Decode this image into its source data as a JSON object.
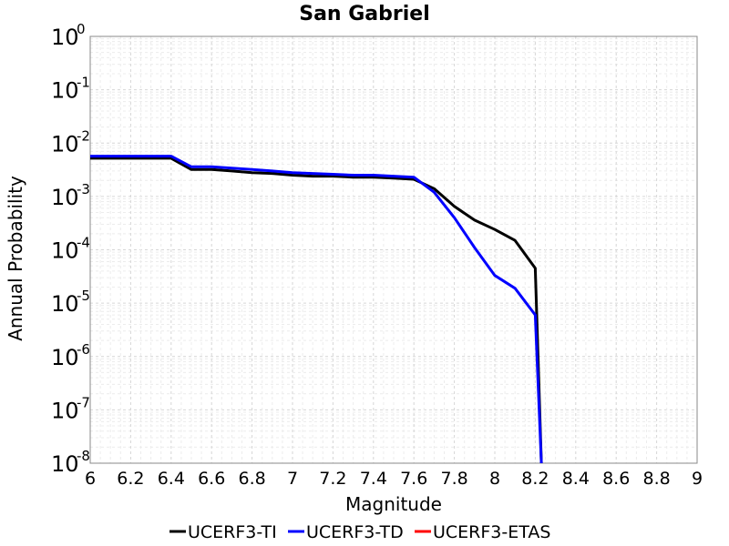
{
  "chart_data": {
    "type": "line",
    "title": "San Gabriel",
    "xlabel": "Magnitude",
    "ylabel": "Annual Probability",
    "xlim": [
      6,
      9
    ],
    "ylim": [
      1e-08,
      1
    ],
    "yscale": "log",
    "grid": true,
    "legend_position": "bottom",
    "x_ticks": [
      "6",
      "6.2",
      "6.4",
      "6.6",
      "6.8",
      "7",
      "7.2",
      "7.4",
      "7.6",
      "7.8",
      "8",
      "8.2",
      "8.4",
      "8.6",
      "8.8",
      "9"
    ],
    "y_ticks": [
      {
        "base": "10",
        "exp": "0"
      },
      {
        "base": "10",
        "exp": "-1"
      },
      {
        "base": "10",
        "exp": "-2"
      },
      {
        "base": "10",
        "exp": "-3"
      },
      {
        "base": "10",
        "exp": "-4"
      },
      {
        "base": "10",
        "exp": "-5"
      },
      {
        "base": "10",
        "exp": "-6"
      },
      {
        "base": "10",
        "exp": "-7"
      },
      {
        "base": "10",
        "exp": "-8"
      }
    ],
    "series": [
      {
        "name": "UCERF3-TI",
        "color": "#000000",
        "x": [
          6.0,
          6.1,
          6.2,
          6.3,
          6.4,
          6.5,
          6.6,
          6.7,
          6.8,
          6.9,
          7.0,
          7.1,
          7.2,
          7.3,
          7.4,
          7.5,
          7.6,
          7.7,
          7.8,
          7.9,
          8.0,
          8.1,
          8.2,
          8.23
        ],
        "y": [
          0.0052,
          0.0052,
          0.0052,
          0.0052,
          0.0052,
          0.0032,
          0.0032,
          0.003,
          0.0028,
          0.0027,
          0.0025,
          0.0024,
          0.0024,
          0.0023,
          0.0023,
          0.0022,
          0.0021,
          0.0014,
          0.00065,
          0.00036,
          0.00024,
          0.00015,
          4.5e-05,
          1e-08
        ]
      },
      {
        "name": "UCERF3-TD",
        "color": "#0000ff",
        "x": [
          6.0,
          6.1,
          6.2,
          6.3,
          6.4,
          6.5,
          6.6,
          6.7,
          6.8,
          6.9,
          7.0,
          7.1,
          7.2,
          7.3,
          7.4,
          7.5,
          7.6,
          7.7,
          7.8,
          7.9,
          8.0,
          8.1,
          8.2,
          8.23
        ],
        "y": [
          0.0057,
          0.0057,
          0.0057,
          0.0057,
          0.0057,
          0.0036,
          0.0036,
          0.0034,
          0.0032,
          0.003,
          0.0028,
          0.0027,
          0.0026,
          0.0025,
          0.0025,
          0.0024,
          0.0023,
          0.0012,
          0.0004,
          0.00011,
          3.3e-05,
          1.9e-05,
          6e-06,
          1e-08
        ]
      },
      {
        "name": "UCERF3-ETAS",
        "color": "#ff0000",
        "x": [],
        "y": []
      }
    ]
  }
}
